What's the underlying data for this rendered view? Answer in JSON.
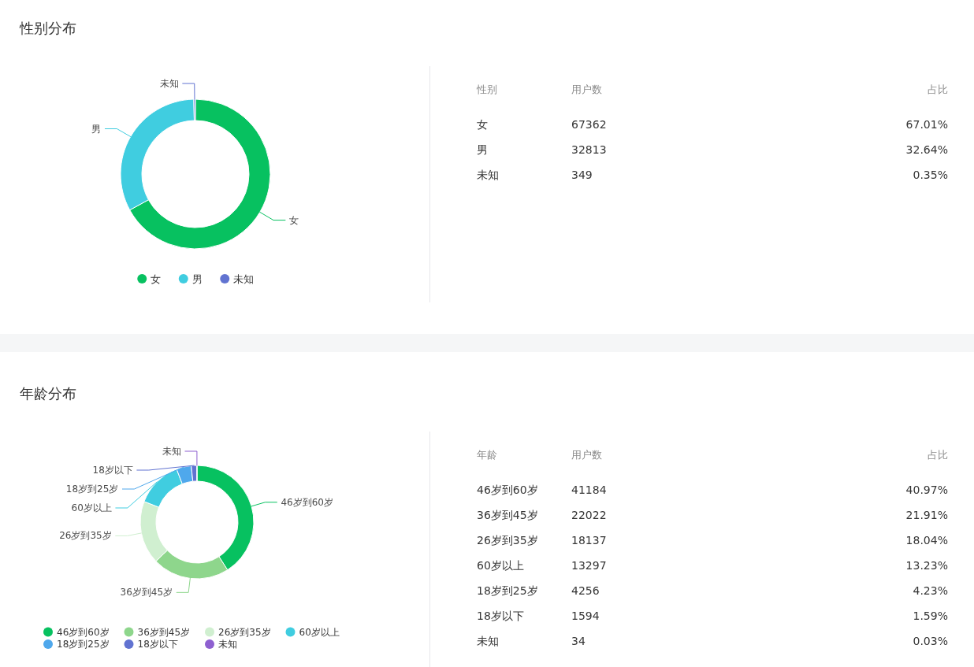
{
  "chart_data": [
    {
      "type": "donut",
      "title": "性别分布",
      "categories": [
        "女",
        "男",
        "未知"
      ],
      "values": [
        67.01,
        32.64,
        0.35
      ],
      "colors": [
        "#07c160",
        "#40cde0",
        "#6173d1"
      ],
      "legend": "bottom",
      "annotations": [
        "性别",
        "用户数",
        "占比",
        "67362",
        "67.01%",
        "32813",
        "32.64%",
        "349",
        "0.35%"
      ]
    },
    {
      "type": "donut",
      "title": "年龄分布",
      "categories": [
        "46岁到60岁",
        "36岁到45岁",
        "26岁到35岁",
        "60岁以上",
        "18岁到25岁",
        "18岁以下",
        "未知"
      ],
      "values": [
        40.97,
        21.91,
        18.04,
        13.23,
        4.23,
        1.59,
        0.03
      ],
      "colors": [
        "#07c160",
        "#8ed68c",
        "#d0efd0",
        "#40cde0",
        "#4fa8ec",
        "#6173d1",
        "#8e60d0"
      ],
      "legend": "bottom",
      "annotations": [
        "年龄",
        "用户数",
        "占比",
        "41184",
        "40.97%",
        "22022",
        "21.91%",
        "18137",
        "18.04%",
        "13297",
        "13.23%",
        "4256",
        "4.23%",
        "1594",
        "1.59%",
        "34",
        "0.03%"
      ]
    }
  ]
}
